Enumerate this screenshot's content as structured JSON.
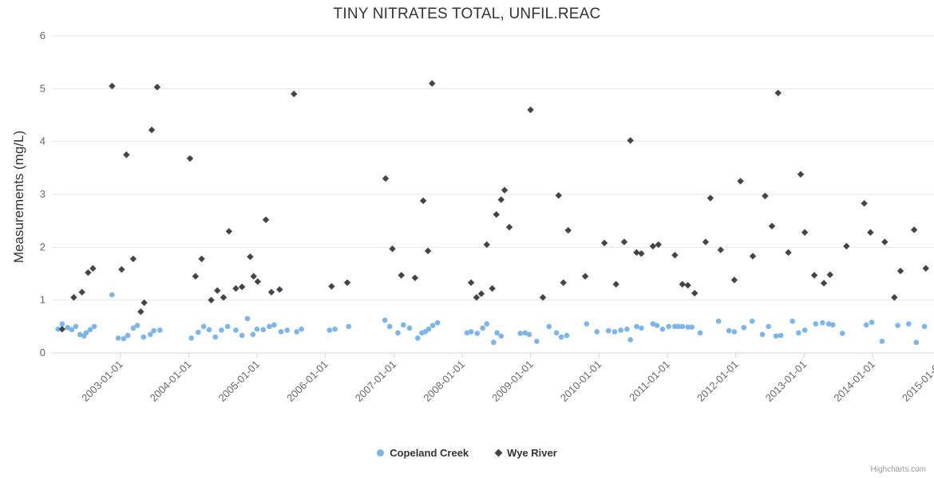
{
  "credits": {
    "label": "Highcharts.com"
  },
  "chart_data": {
    "type": "scatter",
    "title": "TINY NITRATES TOTAL, UNFIL.REAC",
    "xlabel": "",
    "ylabel": "Measurements (mg/L)",
    "grid": "horizontal-only",
    "legend_position": "bottom-center",
    "x_range": [
      2002.0,
      2014.9
    ],
    "y_range": [
      0,
      6
    ],
    "y_ticks": [
      0,
      1,
      2,
      3,
      4,
      5,
      6
    ],
    "x_ticks": [
      {
        "v": 2003,
        "label": "2003-01-01"
      },
      {
        "v": 2004,
        "label": "2004-01-01"
      },
      {
        "v": 2005,
        "label": "2005-01-01"
      },
      {
        "v": 2006,
        "label": "2006-01-01"
      },
      {
        "v": 2007,
        "label": "2007-01-01"
      },
      {
        "v": 2008,
        "label": "2008-01-01"
      },
      {
        "v": 2009,
        "label": "2009-01-01"
      },
      {
        "v": 2010,
        "label": "2010-01-01"
      },
      {
        "v": 2011,
        "label": "2011-01-01"
      },
      {
        "v": 2012,
        "label": "2012-01-01"
      },
      {
        "v": 2013,
        "label": "2013-01-01"
      },
      {
        "v": 2014,
        "label": "2014-01-01"
      },
      {
        "v": 2015,
        "label": "2015-01-01"
      }
    ],
    "colors": {
      "grid": "#e6e6e6",
      "axis_line": "#ccd6eb",
      "axis_label": "#666666",
      "title": "#333333",
      "legend_text": "#333333",
      "credits": "#999999"
    },
    "series": [
      {
        "id": "copeland-creek",
        "name": "Copeland Creek",
        "color": "#7cb5ec",
        "marker": "circle",
        "points": [
          [
            2002.09,
            0.45
          ],
          [
            2002.15,
            0.55
          ],
          [
            2002.23,
            0.48
          ],
          [
            2002.29,
            0.44
          ],
          [
            2002.35,
            0.5
          ],
          [
            2002.41,
            0.35
          ],
          [
            2002.47,
            0.32
          ],
          [
            2002.5,
            0.38
          ],
          [
            2002.56,
            0.44
          ],
          [
            2002.62,
            0.5
          ],
          [
            2002.88,
            1.1
          ],
          [
            2002.97,
            0.28
          ],
          [
            2003.05,
            0.27
          ],
          [
            2003.11,
            0.33
          ],
          [
            2003.19,
            0.47
          ],
          [
            2003.25,
            0.52
          ],
          [
            2003.34,
            0.3
          ],
          [
            2003.44,
            0.35
          ],
          [
            2003.49,
            0.42
          ],
          [
            2003.58,
            0.43
          ],
          [
            2004.04,
            0.28
          ],
          [
            2004.14,
            0.39
          ],
          [
            2004.22,
            0.5
          ],
          [
            2004.3,
            0.44
          ],
          [
            2004.39,
            0.3
          ],
          [
            2004.48,
            0.43
          ],
          [
            2004.57,
            0.5
          ],
          [
            2004.69,
            0.43
          ],
          [
            2004.78,
            0.33
          ],
          [
            2004.86,
            0.65
          ],
          [
            2004.94,
            0.35
          ],
          [
            2005.0,
            0.45
          ],
          [
            2005.09,
            0.44
          ],
          [
            2005.18,
            0.5
          ],
          [
            2005.25,
            0.53
          ],
          [
            2005.35,
            0.4
          ],
          [
            2005.44,
            0.43
          ],
          [
            2005.58,
            0.4
          ],
          [
            2005.65,
            0.45
          ],
          [
            2006.06,
            0.43
          ],
          [
            2006.14,
            0.45
          ],
          [
            2006.34,
            0.5
          ],
          [
            2006.87,
            0.62
          ],
          [
            2006.94,
            0.5
          ],
          [
            2007.06,
            0.38
          ],
          [
            2007.14,
            0.53
          ],
          [
            2007.23,
            0.47
          ],
          [
            2007.35,
            0.28
          ],
          [
            2007.41,
            0.38
          ],
          [
            2007.46,
            0.4
          ],
          [
            2007.51,
            0.45
          ],
          [
            2007.57,
            0.52
          ],
          [
            2007.64,
            0.57
          ],
          [
            2008.07,
            0.38
          ],
          [
            2008.13,
            0.4
          ],
          [
            2008.22,
            0.37
          ],
          [
            2008.3,
            0.47
          ],
          [
            2008.36,
            0.55
          ],
          [
            2008.46,
            0.2
          ],
          [
            2008.51,
            0.38
          ],
          [
            2008.57,
            0.32
          ],
          [
            2008.85,
            0.37
          ],
          [
            2008.92,
            0.38
          ],
          [
            2008.98,
            0.35
          ],
          [
            2009.09,
            0.22
          ],
          [
            2009.27,
            0.5
          ],
          [
            2009.38,
            0.38
          ],
          [
            2009.45,
            0.3
          ],
          [
            2009.53,
            0.33
          ],
          [
            2009.82,
            0.55
          ],
          [
            2009.97,
            0.4
          ],
          [
            2010.14,
            0.42
          ],
          [
            2010.23,
            0.4
          ],
          [
            2010.32,
            0.43
          ],
          [
            2010.41,
            0.45
          ],
          [
            2010.46,
            0.25
          ],
          [
            2010.55,
            0.5
          ],
          [
            2010.62,
            0.47
          ],
          [
            2010.79,
            0.55
          ],
          [
            2010.85,
            0.52
          ],
          [
            2010.93,
            0.45
          ],
          [
            2011.02,
            0.5
          ],
          [
            2011.11,
            0.5
          ],
          [
            2011.16,
            0.5
          ],
          [
            2011.22,
            0.5
          ],
          [
            2011.3,
            0.49
          ],
          [
            2011.36,
            0.49
          ],
          [
            2011.48,
            0.38
          ],
          [
            2011.75,
            0.6
          ],
          [
            2011.9,
            0.42
          ],
          [
            2011.98,
            0.4
          ],
          [
            2012.12,
            0.48
          ],
          [
            2012.24,
            0.6
          ],
          [
            2012.39,
            0.35
          ],
          [
            2012.48,
            0.5
          ],
          [
            2012.59,
            0.32
          ],
          [
            2012.66,
            0.33
          ],
          [
            2012.83,
            0.6
          ],
          [
            2012.92,
            0.38
          ],
          [
            2013.01,
            0.43
          ],
          [
            2013.17,
            0.55
          ],
          [
            2013.27,
            0.57
          ],
          [
            2013.36,
            0.55
          ],
          [
            2013.42,
            0.53
          ],
          [
            2013.56,
            0.37
          ],
          [
            2013.91,
            0.53
          ],
          [
            2013.99,
            0.58
          ],
          [
            2014.14,
            0.22
          ],
          [
            2014.37,
            0.52
          ],
          [
            2014.53,
            0.55
          ],
          [
            2014.64,
            0.2
          ],
          [
            2014.76,
            0.5
          ]
        ]
      },
      {
        "id": "wye-river",
        "name": "Wye River",
        "color": "#434348",
        "marker": "diamond",
        "points": [
          [
            2002.15,
            0.45
          ],
          [
            2002.32,
            1.05
          ],
          [
            2002.44,
            1.15
          ],
          [
            2002.53,
            1.52
          ],
          [
            2002.6,
            1.6
          ],
          [
            2002.88,
            5.05
          ],
          [
            2003.02,
            1.58
          ],
          [
            2003.09,
            3.75
          ],
          [
            2003.19,
            1.78
          ],
          [
            2003.3,
            0.78
          ],
          [
            2003.35,
            0.95
          ],
          [
            2003.46,
            4.22
          ],
          [
            2003.54,
            5.03
          ],
          [
            2004.02,
            3.68
          ],
          [
            2004.1,
            1.45
          ],
          [
            2004.19,
            1.78
          ],
          [
            2004.33,
            1.0
          ],
          [
            2004.42,
            1.18
          ],
          [
            2004.51,
            1.05
          ],
          [
            2004.59,
            2.3
          ],
          [
            2004.69,
            1.22
          ],
          [
            2004.78,
            1.25
          ],
          [
            2004.9,
            1.82
          ],
          [
            2004.95,
            1.45
          ],
          [
            2005.01,
            1.35
          ],
          [
            2005.13,
            2.52
          ],
          [
            2005.21,
            1.15
          ],
          [
            2005.33,
            1.2
          ],
          [
            2005.54,
            4.9
          ],
          [
            2006.09,
            1.26
          ],
          [
            2006.32,
            1.33
          ],
          [
            2006.88,
            3.3
          ],
          [
            2006.98,
            1.97
          ],
          [
            2007.11,
            1.47
          ],
          [
            2007.31,
            1.42
          ],
          [
            2007.43,
            2.88
          ],
          [
            2007.5,
            1.93
          ],
          [
            2007.56,
            5.1
          ],
          [
            2008.13,
            1.33
          ],
          [
            2008.21,
            1.05
          ],
          [
            2008.28,
            1.12
          ],
          [
            2008.36,
            2.05
          ],
          [
            2008.44,
            1.22
          ],
          [
            2008.5,
            2.62
          ],
          [
            2008.57,
            2.9
          ],
          [
            2008.62,
            3.08
          ],
          [
            2008.69,
            2.38
          ],
          [
            2009.0,
            4.6
          ],
          [
            2009.18,
            1.05
          ],
          [
            2009.41,
            2.98
          ],
          [
            2009.48,
            1.33
          ],
          [
            2009.55,
            2.32
          ],
          [
            2009.8,
            1.45
          ],
          [
            2010.08,
            2.08
          ],
          [
            2010.25,
            1.3
          ],
          [
            2010.37,
            2.1
          ],
          [
            2010.46,
            4.02
          ],
          [
            2010.55,
            1.9
          ],
          [
            2010.62,
            1.88
          ],
          [
            2010.79,
            2.02
          ],
          [
            2010.87,
            2.05
          ],
          [
            2011.11,
            1.85
          ],
          [
            2011.22,
            1.3
          ],
          [
            2011.3,
            1.28
          ],
          [
            2011.4,
            1.13
          ],
          [
            2011.56,
            2.1
          ],
          [
            2011.63,
            2.93
          ],
          [
            2011.78,
            1.95
          ],
          [
            2011.98,
            1.38
          ],
          [
            2012.07,
            3.25
          ],
          [
            2012.25,
            1.83
          ],
          [
            2012.43,
            2.97
          ],
          [
            2012.53,
            2.4
          ],
          [
            2012.62,
            4.92
          ],
          [
            2012.77,
            1.9
          ],
          [
            2012.95,
            3.38
          ],
          [
            2013.01,
            2.28
          ],
          [
            2013.15,
            1.47
          ],
          [
            2013.29,
            1.32
          ],
          [
            2013.38,
            1.48
          ],
          [
            2013.62,
            2.02
          ],
          [
            2013.88,
            2.83
          ],
          [
            2013.97,
            2.28
          ],
          [
            2014.18,
            2.1
          ],
          [
            2014.32,
            1.05
          ],
          [
            2014.41,
            1.55
          ],
          [
            2014.61,
            2.33
          ],
          [
            2014.78,
            1.6
          ]
        ]
      }
    ]
  }
}
